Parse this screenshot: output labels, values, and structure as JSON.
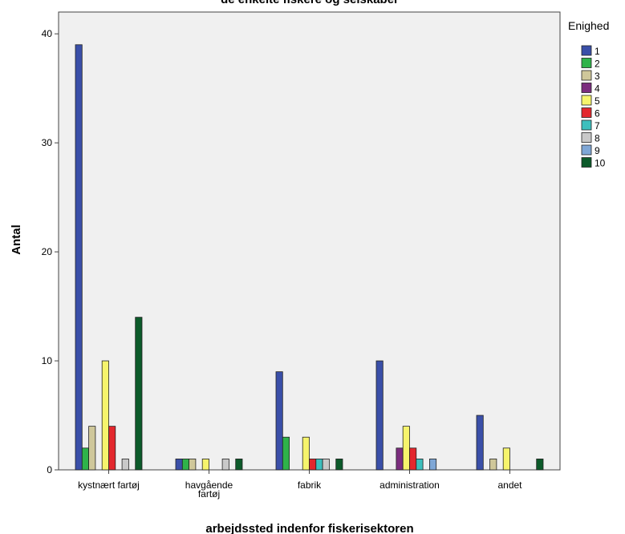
{
  "chart_data": {
    "type": "bar",
    "title": "de enkelte fiskere og selskaber",
    "xlabel": "arbejdssted indenfor fiskerisektoren",
    "ylabel": "Antal",
    "ylim": [
      0,
      42
    ],
    "yticks": [
      0,
      10,
      20,
      30,
      40
    ],
    "categories": [
      [
        "kystnært fartøj"
      ],
      [
        "havgående",
        "fartøj"
      ],
      [
        "fabrik"
      ],
      [
        "administration"
      ],
      [
        "andet"
      ]
    ],
    "legend_title": "Enighed",
    "legend_position": "right",
    "series": [
      {
        "name": "1",
        "color": "#3a4fa8",
        "values": [
          39,
          1,
          9,
          10,
          5
        ]
      },
      {
        "name": "2",
        "color": "#2fb34a",
        "values": [
          2,
          1,
          3,
          0,
          0
        ]
      },
      {
        "name": "3",
        "color": "#cfc79a",
        "values": [
          4,
          1,
          0,
          0,
          1
        ]
      },
      {
        "name": "4",
        "color": "#7b2d7e",
        "values": [
          0,
          0,
          0,
          2,
          0
        ]
      },
      {
        "name": "5",
        "color": "#f6f46c",
        "values": [
          10,
          1,
          3,
          4,
          2
        ]
      },
      {
        "name": "6",
        "color": "#e3272d",
        "values": [
          4,
          0,
          1,
          2,
          0
        ]
      },
      {
        "name": "7",
        "color": "#3dbfbd",
        "values": [
          0,
          0,
          1,
          1,
          0
        ]
      },
      {
        "name": "8",
        "color": "#c9c9c9",
        "values": [
          1,
          1,
          1,
          0,
          0
        ]
      },
      {
        "name": "9",
        "color": "#7fa7d6",
        "values": [
          0,
          0,
          0,
          1,
          0
        ]
      },
      {
        "name": "10",
        "color": "#0c5a2a",
        "values": [
          14,
          1,
          1,
          0,
          1
        ]
      }
    ]
  }
}
